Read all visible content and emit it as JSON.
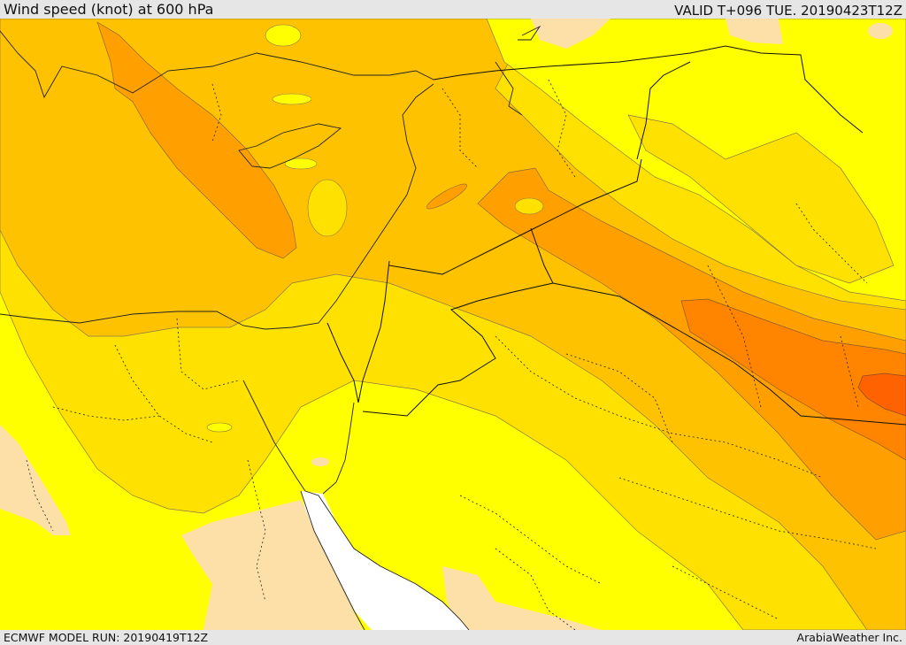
{
  "header": {
    "title": "Wind speed (knot) at 600 hPa",
    "valid": "VALID T+096 TUE. 20190423T12Z"
  },
  "footer": {
    "model_run": "ECMWF MODEL RUN: 20190419T12Z",
    "credit": "ArabiaWeather Inc."
  },
  "map": {
    "field": "wind speed at 600 hPa",
    "units": "knot",
    "palette": {
      "sea_no_data": "#ffffff",
      "lowest": "#fde0a8",
      "low": "#ffff00",
      "mid_low": "#ffe100",
      "mid": "#ffc200",
      "mid_high": "#ffa000",
      "high": "#ff8400",
      "highest": "#ff6200"
    }
  }
}
